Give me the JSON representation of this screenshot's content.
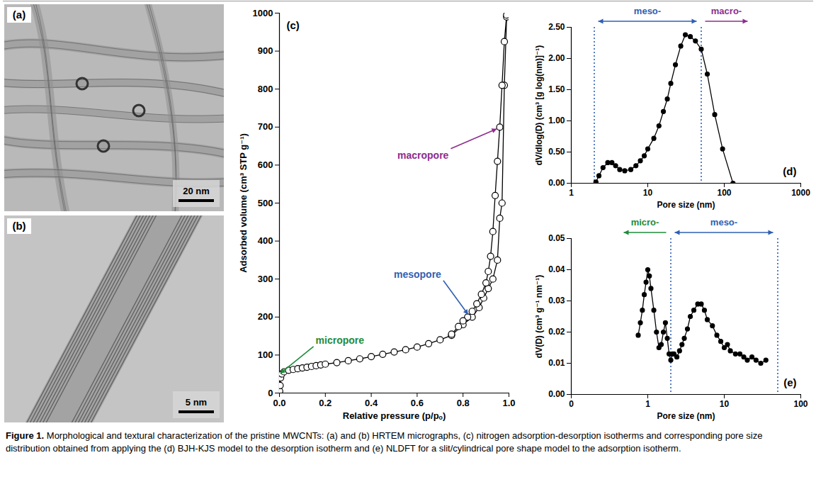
{
  "chart_data": [
    {
      "type": "line",
      "panel_label": "(c)",
      "x_label": "Relative pressure (p/pₒ)",
      "y_label": "Adsorbed volume (cm³ STP g⁻¹)",
      "xlim": [
        0,
        1
      ],
      "xticks": [
        {
          "value": 0,
          "label": "0.0"
        },
        {
          "value": 0.2,
          "label": "0.2"
        },
        {
          "value": 0.4,
          "label": "0.4"
        },
        {
          "value": 0.6,
          "label": "0.6"
        },
        {
          "value": 0.8,
          "label": "0.8"
        },
        {
          "value": 1,
          "label": "1.0"
        }
      ],
      "ylim": [
        0,
        1000
      ],
      "yticks": [
        0,
        100,
        200,
        300,
        400,
        500,
        600,
        700,
        800,
        900,
        1000
      ],
      "grid": false,
      "marker": "open circle",
      "line_style": "solid",
      "color": "#000000",
      "series": [
        {
          "x": [
            0.001,
            0.003,
            0.005,
            0.01,
            0.02,
            0.04,
            0.06,
            0.08,
            0.1,
            0.12,
            0.14,
            0.16,
            0.18,
            0.2,
            0.25,
            0.3,
            0.35,
            0.4,
            0.45,
            0.5,
            0.55,
            0.6,
            0.65,
            0.7,
            0.75,
            0.8,
            0.84,
            0.87,
            0.89,
            0.91,
            0.93,
            0.95,
            0.96,
            0.97,
            0.98,
            0.99,
            0.995
          ],
          "values": [
            5,
            20,
            40,
            50,
            56,
            60,
            62,
            64,
            66,
            68,
            70,
            72,
            74,
            76,
            80,
            85,
            90,
            96,
            102,
            108,
            114,
            121,
            130,
            140,
            152,
            180,
            200,
            225,
            250,
            275,
            300,
            350,
            460,
            500,
            810,
            990,
            1000
          ]
        },
        {
          "x": [
            0.995,
            0.99,
            0.98,
            0.97,
            0.96,
            0.95,
            0.94,
            0.93,
            0.92,
            0.91,
            0.9,
            0.88,
            0.86,
            0.84,
            0.82,
            0.8,
            0.78,
            0.75
          ],
          "values": [
            1000,
            995,
            925,
            810,
            700,
            610,
            520,
            425,
            360,
            320,
            290,
            260,
            235,
            215,
            200,
            190,
            175,
            155
          ]
        }
      ],
      "annotations": [
        {
          "text": "micropore",
          "color": "#1e8c3a",
          "x": 0.005,
          "y": 45
        },
        {
          "text": "mesopore",
          "color": "#2f5fb3",
          "x": 0.83,
          "y": 200
        },
        {
          "text": "macropore",
          "color": "#8e2d8e",
          "x": 0.955,
          "y": 700
        }
      ]
    },
    {
      "type": "line",
      "panel_label": "(d)",
      "log": "x",
      "x_label": "Pore size (nm)",
      "y_label": "dV/dlog(D) (cm³ [g log(nm)]⁻¹)",
      "xlim": [
        1,
        1000
      ],
      "xticks": [
        1,
        10,
        100,
        1000
      ],
      "ylim": [
        0,
        2.5
      ],
      "yticks": [
        {
          "value": 0,
          "label": "0.00"
        },
        {
          "value": 0.5,
          "label": "0.50"
        },
        {
          "value": 1,
          "label": "1.00"
        },
        {
          "value": 1.5,
          "label": "1.50"
        },
        {
          "value": 2,
          "label": "2.00"
        },
        {
          "value": 2.5,
          "label": "2.50"
        }
      ],
      "grid": false,
      "marker": "circle",
      "line_style": "solid",
      "color": "#000000",
      "series": [
        {
          "x": [
            2.1,
            2.3,
            2.6,
            3.0,
            3.4,
            3.8,
            4.3,
            5,
            6,
            7,
            8,
            9,
            10,
            12,
            14,
            16,
            18,
            20,
            23,
            27,
            31,
            36,
            42,
            50,
            60,
            75,
            95,
            130
          ],
          "values": [
            0.02,
            0.12,
            0.25,
            0.33,
            0.33,
            0.28,
            0.22,
            0.2,
            0.22,
            0.28,
            0.36,
            0.44,
            0.55,
            0.72,
            0.92,
            1.15,
            1.35,
            1.6,
            1.9,
            2.2,
            2.38,
            2.35,
            2.28,
            2.15,
            1.75,
            1.1,
            0.55,
            0.0
          ]
        }
      ],
      "regions": [
        {
          "text": "meso-",
          "color": "#2f5fb3",
          "from": 2,
          "to": 50
        },
        {
          "text": "macro-",
          "color": "#8e2d8e",
          "from": 50
        }
      ]
    },
    {
      "type": "line",
      "panel_label": "(e)",
      "log": "x",
      "x_label": "Pore size (nm)",
      "y_label": "dV(D) (cm³ g⁻¹ nm⁻¹)",
      "xlim": [
        0.1,
        100
      ],
      "xticks": [
        {
          "value": 0.1,
          "label": "0"
        },
        1,
        10,
        100
      ],
      "ylim": [
        0,
        0.05
      ],
      "yticks": [
        {
          "value": 0,
          "label": "0.00"
        },
        {
          "value": 0.01,
          "label": "0.01"
        },
        {
          "value": 0.02,
          "label": "0.02"
        },
        {
          "value": 0.03,
          "label": "0.03"
        },
        {
          "value": 0.04,
          "label": "0.04"
        },
        {
          "value": 0.05,
          "label": "0.05"
        }
      ],
      "grid": false,
      "marker": "circle",
      "line_style": "solid",
      "color": "#000000",
      "series": [
        {
          "x": [
            0.75,
            0.8,
            0.85,
            0.9,
            0.95,
            1.0,
            1.05,
            1.1,
            1.2,
            1.3,
            1.4,
            1.5,
            1.6,
            1.7,
            1.8,
            1.9,
            2.0,
            2.1,
            2.2,
            2.4,
            2.6,
            2.8,
            3.0,
            3.3,
            3.6,
            4.0,
            4.5,
            5.0,
            5.5,
            6,
            7,
            8,
            9,
            10,
            11,
            12,
            14,
            16,
            18,
            20,
            23,
            26,
            30,
            35
          ],
          "values": [
            0.019,
            0.023,
            0.027,
            0.032,
            0.036,
            0.04,
            0.038,
            0.034,
            0.027,
            0.02,
            0.015,
            0.016,
            0.02,
            0.023,
            0.018,
            0.013,
            0.011,
            0.013,
            0.013,
            0.012,
            0.014,
            0.016,
            0.018,
            0.021,
            0.025,
            0.027,
            0.029,
            0.029,
            0.027,
            0.024,
            0.022,
            0.019,
            0.017,
            0.015,
            0.016,
            0.014,
            0.013,
            0.013,
            0.012,
            0.011,
            0.012,
            0.011,
            0.01,
            0.011
          ]
        }
      ],
      "regions": [
        {
          "text": "micro-",
          "color": "#1e8c3a",
          "to": 2
        },
        {
          "text": "meso-",
          "color": "#2f5fb3",
          "from": 2,
          "to": 50
        }
      ]
    }
  ],
  "micrographs": [
    {
      "panel_label": "(a)",
      "scale_bar": "20 nm"
    },
    {
      "panel_label": "(b)",
      "scale_bar": "5 nm"
    }
  ],
  "caption": {
    "label": "Figure 1.",
    "text": "Morphological and textural characterization of the pristine MWCNTs: (a) and (b) HRTEM micrographs, (c) nitrogen adsorption-desorption isotherms and corresponding pore size distribution obtained from applying the (d) BJH-KJS model to the desorption isotherm and (e) NLDFT for a slit/cylindrical pore shape model to the adsorption isotherm."
  }
}
